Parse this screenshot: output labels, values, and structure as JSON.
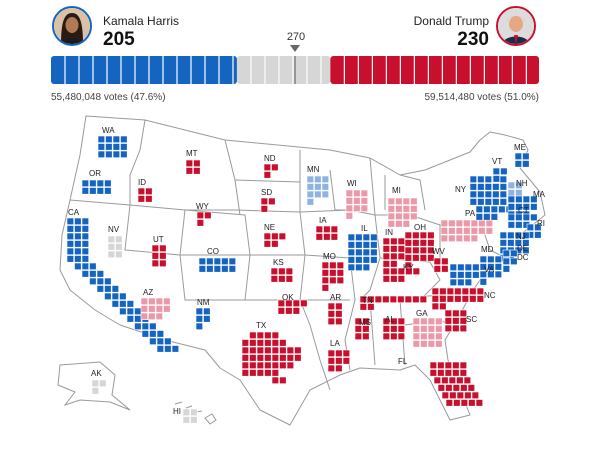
{
  "header": {
    "threshold": "270",
    "dem": {
      "name": "Kamala Harris",
      "electoral": "205",
      "popular": "55,480,048 votes (47.6%)"
    },
    "rep": {
      "name": "Donald Trump",
      "electoral": "230",
      "popular": "59,514,480 votes (51.0%)"
    }
  },
  "colors": {
    "dem": "#1565c0",
    "dem_light": "#8fb3e0",
    "rep": "#c8102e",
    "rep_light": "#eb99a8",
    "pending": "#d6d6d6",
    "outline": "#9a9a9a"
  },
  "bar": {
    "total": 538,
    "dem": 205,
    "rep": 230
  },
  "states": [
    {
      "abbr": "WA",
      "ev": 12,
      "status": "dem"
    },
    {
      "abbr": "OR",
      "ev": 8,
      "status": "dem"
    },
    {
      "abbr": "CA",
      "ev": 54,
      "status": "dem"
    },
    {
      "abbr": "NV",
      "ev": 6,
      "status": "pending"
    },
    {
      "abbr": "ID",
      "ev": 4,
      "status": "rep"
    },
    {
      "abbr": "MT",
      "ev": 4,
      "status": "rep"
    },
    {
      "abbr": "WY",
      "ev": 3,
      "status": "rep"
    },
    {
      "abbr": "UT",
      "ev": 6,
      "status": "rep"
    },
    {
      "abbr": "CO",
      "ev": 10,
      "status": "dem"
    },
    {
      "abbr": "AZ",
      "ev": 11,
      "status": "rep_light"
    },
    {
      "abbr": "NM",
      "ev": 5,
      "status": "dem"
    },
    {
      "abbr": "ND",
      "ev": 3,
      "status": "rep"
    },
    {
      "abbr": "SD",
      "ev": 3,
      "status": "rep"
    },
    {
      "abbr": "NE",
      "ev": 5,
      "status": "rep"
    },
    {
      "abbr": "KS",
      "ev": 6,
      "status": "rep"
    },
    {
      "abbr": "OK",
      "ev": 7,
      "status": "rep"
    },
    {
      "abbr": "TX",
      "ev": 40,
      "status": "rep"
    },
    {
      "abbr": "MN",
      "ev": 10,
      "status": "dem_light"
    },
    {
      "abbr": "IA",
      "ev": 6,
      "status": "rep"
    },
    {
      "abbr": "MO",
      "ev": 10,
      "status": "rep"
    },
    {
      "abbr": "AR",
      "ev": 6,
      "status": "rep"
    },
    {
      "abbr": "LA",
      "ev": 8,
      "status": "rep"
    },
    {
      "abbr": "WI",
      "ev": 10,
      "status": "rep_light"
    },
    {
      "abbr": "IL",
      "ev": 19,
      "status": "dem"
    },
    {
      "abbr": "MI",
      "ev": 15,
      "status": "rep_light"
    },
    {
      "abbr": "IN",
      "ev": 11,
      "status": "rep"
    },
    {
      "abbr": "OH",
      "ev": 17,
      "status": "rep"
    },
    {
      "abbr": "KY",
      "ev": 8,
      "status": "rep"
    },
    {
      "abbr": "TN",
      "ev": 11,
      "status": "rep"
    },
    {
      "abbr": "MS",
      "ev": 6,
      "status": "rep"
    },
    {
      "abbr": "AL",
      "ev": 9,
      "status": "rep"
    },
    {
      "abbr": "GA",
      "ev": 16,
      "status": "rep_light"
    },
    {
      "abbr": "FL",
      "ev": 30,
      "status": "rep"
    },
    {
      "abbr": "SC",
      "ev": 9,
      "status": "rep"
    },
    {
      "abbr": "NC",
      "ev": 16,
      "status": "rep"
    },
    {
      "abbr": "VA",
      "ev": 13,
      "status": "dem"
    },
    {
      "abbr": "WV",
      "ev": 4,
      "status": "rep"
    },
    {
      "abbr": "PA",
      "ev": 19,
      "status": "rep_light"
    },
    {
      "abbr": "NY",
      "ev": 28,
      "status": "dem"
    },
    {
      "abbr": "VT",
      "ev": 3,
      "status": "dem"
    },
    {
      "abbr": "NH",
      "ev": 4,
      "status": "dem_light"
    },
    {
      "abbr": "ME",
      "ev": 4,
      "status": "dem"
    },
    {
      "abbr": "MA",
      "ev": 11,
      "status": "dem"
    },
    {
      "abbr": "CT",
      "ev": 7,
      "status": "dem"
    },
    {
      "abbr": "RI",
      "ev": 4,
      "status": "dem"
    },
    {
      "abbr": "NJ",
      "ev": 14,
      "status": "dem"
    },
    {
      "abbr": "DE",
      "ev": 3,
      "status": "dem"
    },
    {
      "abbr": "MD",
      "ev": 10,
      "status": "dem"
    },
    {
      "abbr": "DC",
      "ev": 3,
      "status": "dem"
    },
    {
      "abbr": "AK",
      "ev": 3,
      "status": "pending"
    },
    {
      "abbr": "HI",
      "ev": 4,
      "status": "pending"
    }
  ]
}
